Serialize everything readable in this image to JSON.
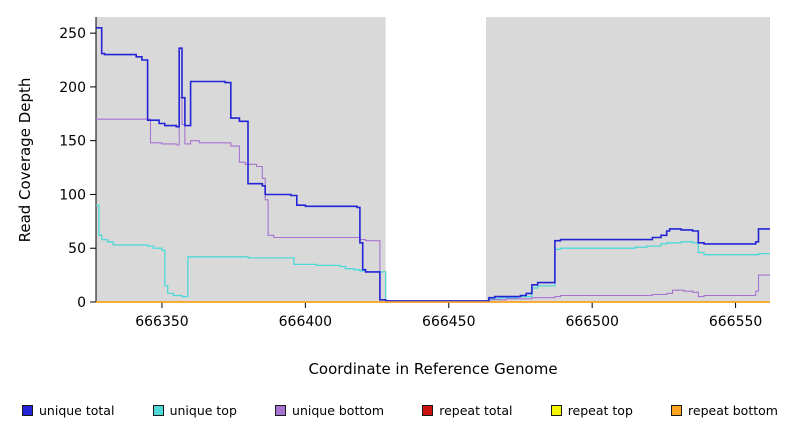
{
  "chart_data": {
    "type": "line",
    "title": "",
    "xlabel": "Coordinate in Reference Genome",
    "ylabel": "Read Coverage Depth",
    "xlim": [
      666327,
      666562
    ],
    "ylim": [
      0,
      265
    ],
    "x_ticks": [
      666350,
      666400,
      666450,
      666500,
      666550
    ],
    "y_ticks": [
      0,
      50,
      100,
      150,
      200,
      250
    ],
    "panel_bg": "#d9d9d9",
    "masked_region": {
      "x_start": 666428,
      "x_end": 666463,
      "color": "#ffffff"
    },
    "legend_position": "bottom",
    "grid": false,
    "step": true,
    "draw_order": [
      3,
      4,
      1,
      2,
      0,
      5
    ],
    "series": [
      {
        "name": "unique total",
        "color": "#2424d6",
        "width": 1.6,
        "points": [
          [
            666327,
            255
          ],
          [
            666329,
            231
          ],
          [
            666330,
            230
          ],
          [
            666341,
            228
          ],
          [
            666343,
            225
          ],
          [
            666345,
            169
          ],
          [
            666349,
            166
          ],
          [
            666351,
            164
          ],
          [
            666355,
            163
          ],
          [
            666356,
            236
          ],
          [
            666357,
            190
          ],
          [
            666358,
            164
          ],
          [
            666360,
            205
          ],
          [
            666372,
            204
          ],
          [
            666374,
            171
          ],
          [
            666377,
            168
          ],
          [
            666380,
            110
          ],
          [
            666385,
            108
          ],
          [
            666386,
            100
          ],
          [
            666395,
            99
          ],
          [
            666397,
            90
          ],
          [
            666400,
            89
          ],
          [
            666418,
            88
          ],
          [
            666419,
            55
          ],
          [
            666420,
            30
          ],
          [
            666421,
            28
          ],
          [
            666426,
            2
          ],
          [
            666428,
            1
          ],
          [
            666462,
            1
          ],
          [
            666464,
            4
          ],
          [
            666466,
            5
          ],
          [
            666475,
            6
          ],
          [
            666477,
            8
          ],
          [
            666479,
            16
          ],
          [
            666481,
            18
          ],
          [
            666487,
            57
          ],
          [
            666489,
            58
          ],
          [
            666519,
            58
          ],
          [
            666521,
            60
          ],
          [
            666524,
            62
          ],
          [
            666526,
            66
          ],
          [
            666527,
            68
          ],
          [
            666531,
            67
          ],
          [
            666535,
            66
          ],
          [
            666537,
            55
          ],
          [
            666539,
            54
          ],
          [
            666555,
            54
          ],
          [
            666557,
            56
          ],
          [
            666558,
            68
          ],
          [
            666562,
            68
          ]
        ]
      },
      {
        "name": "unique top",
        "color": "#4fd8d8",
        "width": 1.3,
        "points": [
          [
            666327,
            90
          ],
          [
            666328,
            62
          ],
          [
            666329,
            58
          ],
          [
            666331,
            56
          ],
          [
            666333,
            53
          ],
          [
            666345,
            52
          ],
          [
            666347,
            50
          ],
          [
            666350,
            48
          ],
          [
            666351,
            15
          ],
          [
            666352,
            8
          ],
          [
            666354,
            6
          ],
          [
            666357,
            5
          ],
          [
            666359,
            42
          ],
          [
            666377,
            42
          ],
          [
            666380,
            41
          ],
          [
            666395,
            41
          ],
          [
            666396,
            35
          ],
          [
            666404,
            34
          ],
          [
            666412,
            33
          ],
          [
            666414,
            31
          ],
          [
            666417,
            30
          ],
          [
            666419,
            29
          ],
          [
            666421,
            28
          ],
          [
            666426,
            28
          ],
          [
            666428,
            0
          ],
          [
            666462,
            0
          ],
          [
            666464,
            3
          ],
          [
            666468,
            4
          ],
          [
            666474,
            5
          ],
          [
            666479,
            13
          ],
          [
            666481,
            15
          ],
          [
            666487,
            49
          ],
          [
            666489,
            50
          ],
          [
            666515,
            51
          ],
          [
            666519,
            52
          ],
          [
            666524,
            54
          ],
          [
            666526,
            55
          ],
          [
            666531,
            56
          ],
          [
            666535,
            55
          ],
          [
            666537,
            46
          ],
          [
            666539,
            44
          ],
          [
            666556,
            44
          ],
          [
            666558,
            45
          ],
          [
            666562,
            45
          ]
        ]
      },
      {
        "name": "unique bottom",
        "color": "#a673d2",
        "width": 1.1,
        "points": [
          [
            666327,
            170
          ],
          [
            666344,
            170
          ],
          [
            666346,
            148
          ],
          [
            666350,
            147
          ],
          [
            666355,
            146
          ],
          [
            666356,
            190
          ],
          [
            666357,
            165
          ],
          [
            666358,
            147
          ],
          [
            666360,
            150
          ],
          [
            666363,
            148
          ],
          [
            666372,
            148
          ],
          [
            666374,
            145
          ],
          [
            666377,
            130
          ],
          [
            666379,
            128
          ],
          [
            666383,
            126
          ],
          [
            666385,
            115
          ],
          [
            666386,
            95
          ],
          [
            666387,
            62
          ],
          [
            666389,
            60
          ],
          [
            666418,
            60
          ],
          [
            666419,
            58
          ],
          [
            666421,
            57
          ],
          [
            666426,
            2
          ],
          [
            666428,
            1
          ],
          [
            666462,
            1
          ],
          [
            666464,
            2
          ],
          [
            666470,
            3
          ],
          [
            666477,
            3
          ],
          [
            666479,
            4
          ],
          [
            666487,
            5
          ],
          [
            666489,
            6
          ],
          [
            666519,
            6
          ],
          [
            666521,
            7
          ],
          [
            666526,
            8
          ],
          [
            666528,
            11
          ],
          [
            666532,
            10
          ],
          [
            666535,
            9
          ],
          [
            666537,
            5
          ],
          [
            666539,
            6
          ],
          [
            666555,
            6
          ],
          [
            666557,
            10
          ],
          [
            666558,
            25
          ],
          [
            666562,
            25
          ]
        ]
      },
      {
        "name": "repeat total",
        "color": "#cc1111",
        "width": 1.2,
        "points": [
          [
            666327,
            0
          ],
          [
            666562,
            0
          ]
        ]
      },
      {
        "name": "repeat top",
        "color": "#f5f500",
        "width": 1.2,
        "points": [
          [
            666327,
            0
          ],
          [
            666562,
            0
          ]
        ]
      },
      {
        "name": "repeat bottom",
        "color": "#ffa521",
        "width": 1.4,
        "points": [
          [
            666327,
            0
          ],
          [
            666562,
            0
          ]
        ]
      }
    ]
  },
  "legend": {
    "items": [
      {
        "label": "unique total",
        "color": "#2424d6"
      },
      {
        "label": "unique top",
        "color": "#4fd8d8"
      },
      {
        "label": "unique bottom",
        "color": "#a673d2"
      },
      {
        "label": "repeat total",
        "color": "#cc1111"
      },
      {
        "label": "repeat top",
        "color": "#f5f500"
      },
      {
        "label": "repeat bottom",
        "color": "#ffa521"
      }
    ]
  }
}
